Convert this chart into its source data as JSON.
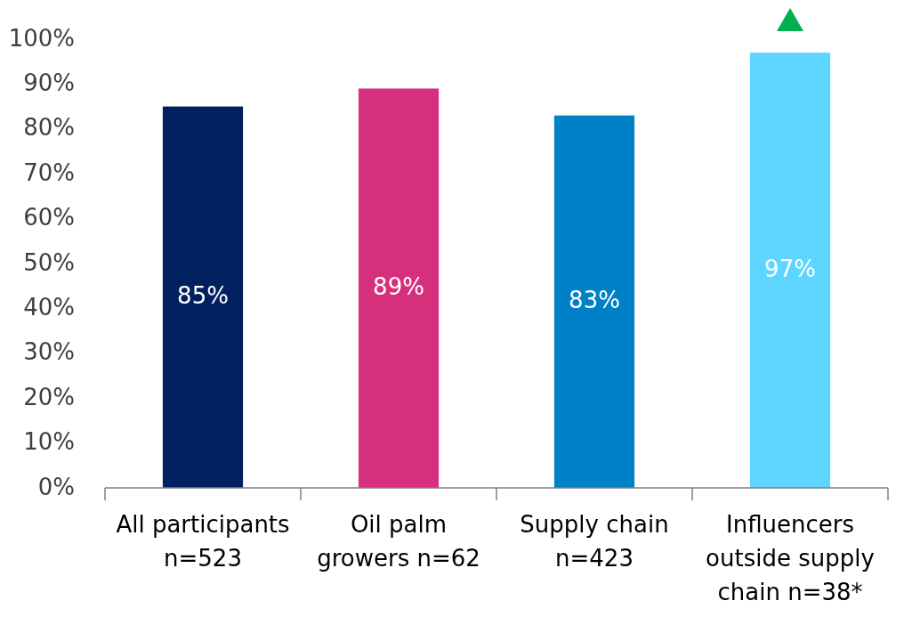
{
  "chart_data": {
    "type": "bar",
    "categories": [
      "All participants\nn=523",
      "Oil palm\ngrowers n=62",
      "Supply chain\nn=423",
      "Influencers\noutside supply\nchain n=38*"
    ],
    "values": [
      85,
      89,
      83,
      97
    ],
    "colors": [
      "#002060",
      "#d6307c",
      "#0080c6",
      "#5dd5ff"
    ],
    "ylim": [
      0,
      100
    ],
    "yticks": [
      {
        "value": 0,
        "label": "0%"
      },
      {
        "value": 10,
        "label": "10%"
      },
      {
        "value": 20,
        "label": "20%"
      },
      {
        "value": 30,
        "label": "30%"
      },
      {
        "value": 40,
        "label": "40%"
      },
      {
        "value": 50,
        "label": "50%"
      },
      {
        "value": 60,
        "label": "60%"
      },
      {
        "value": 70,
        "label": "70%"
      },
      {
        "value": 80,
        "label": "80%"
      },
      {
        "value": 90,
        "label": "90%"
      },
      {
        "value": 100,
        "label": "100%"
      }
    ],
    "value_labels": [
      "85%",
      "89%",
      "83%",
      "97%"
    ],
    "grid": false
  }
}
